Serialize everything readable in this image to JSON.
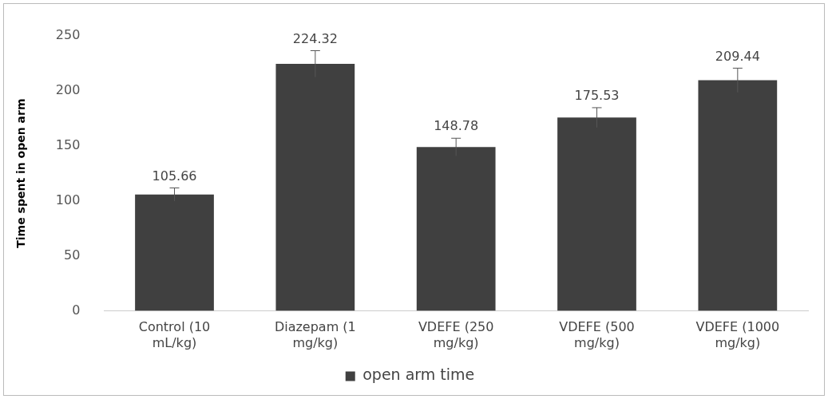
{
  "chart_data": {
    "type": "bar",
    "ylabel": "Time spent in open arm",
    "categories": [
      "Control (10 mL/kg)",
      "Diazepam (1 mg/kg)",
      "VDEFE (250 mg/kg)",
      "VDEFE (500 mg/kg)",
      "VDEFE (1000 mg/kg)"
    ],
    "series": [
      {
        "name": "open arm time",
        "color": "#404040",
        "values": [
          105.66,
          224.32,
          148.78,
          175.53,
          209.44
        ],
        "errors": [
          6,
          12,
          8,
          9,
          11
        ]
      }
    ],
    "ylim": [
      0,
      250
    ],
    "yticks": [
      0,
      50,
      100,
      150,
      200,
      250
    ],
    "grid": false,
    "legend": "bottom",
    "data_labels": true
  }
}
